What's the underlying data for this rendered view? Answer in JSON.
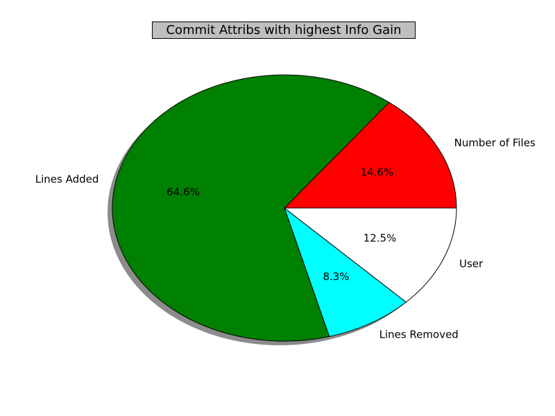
{
  "chart_data": {
    "type": "pie",
    "title": "Commit Attribs with highest Info Gain",
    "start_angle_deg": 0,
    "direction": "counterclockwise",
    "shadow": true,
    "slices": [
      {
        "label": "Number of Files",
        "value": 14.6,
        "pct_label": "14.6%",
        "color": "#ff0000"
      },
      {
        "label": "Lines Added",
        "value": 64.6,
        "pct_label": "64.6%",
        "color": "#008000"
      },
      {
        "label": "Lines Removed",
        "value": 8.3,
        "pct_label": "8.3%",
        "color": "#00ffff"
      },
      {
        "label": "User",
        "value": 12.5,
        "pct_label": "12.5%",
        "color": "#ffffff"
      }
    ]
  }
}
